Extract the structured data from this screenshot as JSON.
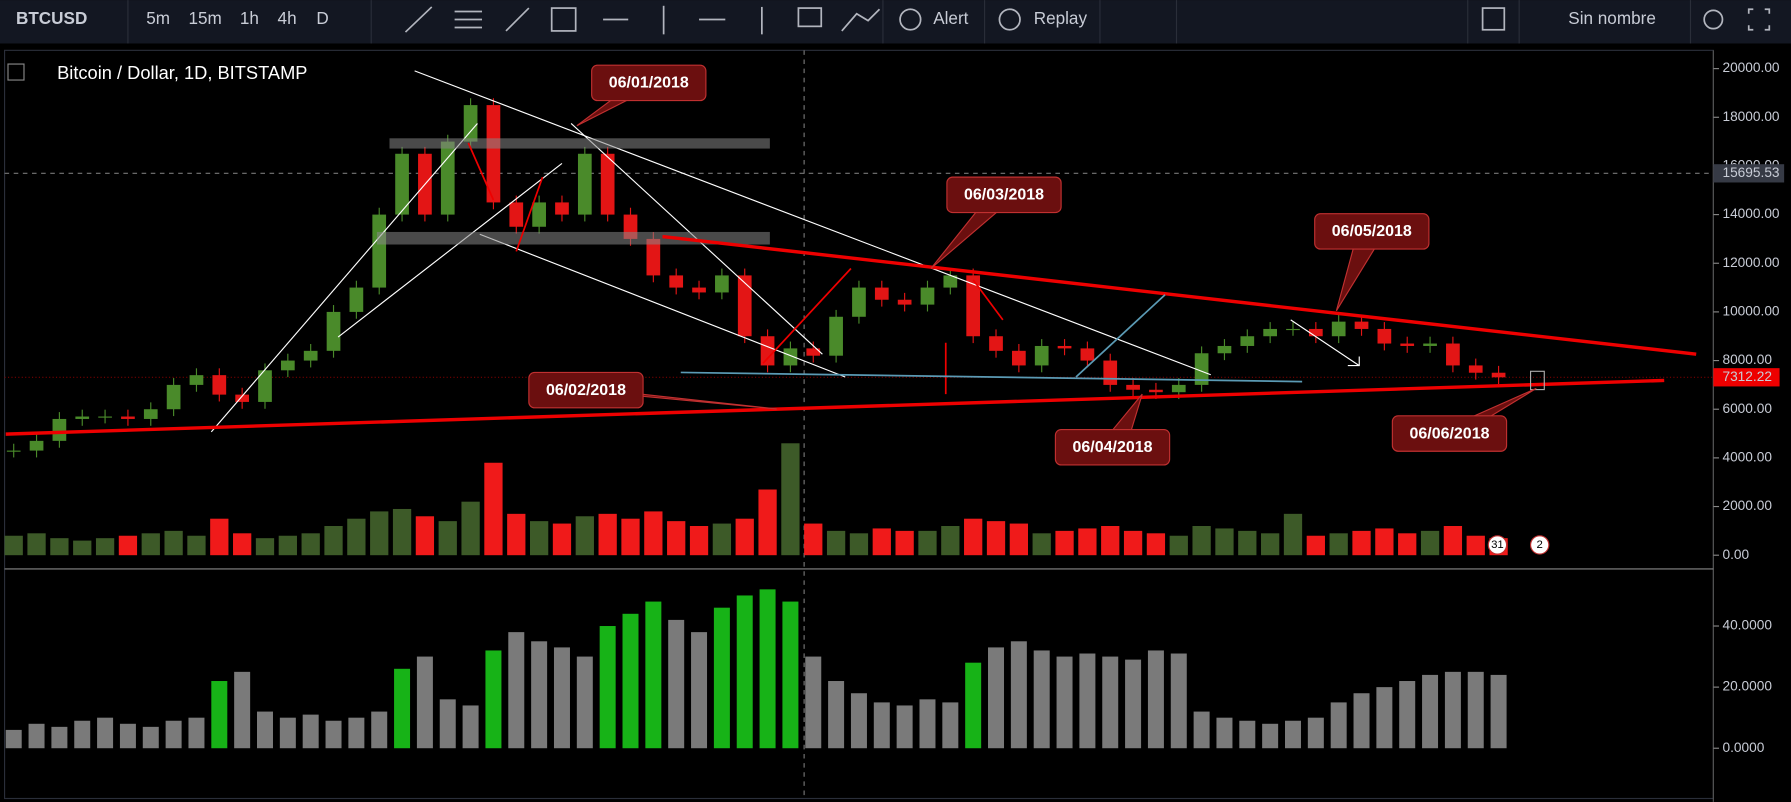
{
  "toolbar": {
    "symbol": "BTCUSD",
    "intervals": [
      "5m",
      "15m",
      "1h",
      "4h",
      "D"
    ],
    "alert": "Alert",
    "replay": "Replay",
    "layout": "Sin nombre"
  },
  "legend": "Bitcoin / Dollar, 1D, BITSTAMP",
  "price_axis": {
    "ticks": [
      {
        "value": 20000,
        "label": "20000.00"
      },
      {
        "value": 18000,
        "label": "18000.00"
      },
      {
        "value": 16000,
        "label": "16000.00"
      },
      {
        "value": 14000,
        "label": "14000.00"
      },
      {
        "value": 12000,
        "label": "12000.00"
      },
      {
        "value": 10000,
        "label": "10000.00"
      },
      {
        "value": 8000,
        "label": "8000.00"
      },
      {
        "value": 6000,
        "label": "6000.00"
      },
      {
        "value": 4000,
        "label": "4000.00"
      },
      {
        "value": 2000,
        "label": "2000.00"
      },
      {
        "value": 0,
        "label": "0.00"
      }
    ],
    "crosshair": {
      "value": 15695.53,
      "label": "15695.53"
    },
    "last": {
      "value": 7312.22,
      "label": "7312.22"
    }
  },
  "osc_axis": {
    "ticks": [
      {
        "value": 40,
        "label": "40.0000"
      },
      {
        "value": 20,
        "label": "20.0000"
      },
      {
        "value": 0,
        "label": "0.0000"
      }
    ]
  },
  "price": [
    4300,
    4700,
    5600,
    5700,
    5700,
    5600,
    6000,
    7000,
    7400,
    6600,
    6300,
    7600,
    8000,
    8400,
    10000,
    11000,
    14000,
    16500,
    14000,
    17000,
    18500,
    14500,
    13500,
    14500,
    14000,
    16500,
    14000,
    13000,
    11500,
    11000,
    10800,
    11500,
    9000,
    7800,
    8500,
    8200,
    9800,
    11000,
    10500,
    10300,
    11000,
    11500,
    9000,
    8400,
    7800,
    8600,
    8500,
    8000,
    7000,
    6800,
    6700,
    7000,
    8300,
    8600,
    9000,
    9300,
    9300,
    9000,
    9600,
    9300,
    8700,
    8600,
    8700,
    7800,
    7500,
    7312
  ],
  "volume": [
    800,
    900,
    700,
    600,
    700,
    800,
    900,
    1000,
    800,
    1500,
    900,
    700,
    800,
    900,
    1200,
    1500,
    1800,
    1900,
    1600,
    1400,
    2200,
    3800,
    1700,
    1400,
    1300,
    1600,
    1700,
    1500,
    1800,
    1400,
    1200,
    1300,
    1500,
    2700,
    4600,
    1300,
    1000,
    900,
    1100,
    1000,
    1000,
    1200,
    1500,
    1400,
    1300,
    900,
    1000,
    1100,
    1200,
    1000,
    900,
    800,
    1200,
    1100,
    1000,
    900,
    1700,
    800,
    900,
    1000,
    1100,
    900,
    1000,
    1200,
    800,
    700
  ],
  "oscillator": [
    6,
    8,
    7,
    9,
    10,
    8,
    7,
    9,
    10,
    22,
    25,
    12,
    10,
    11,
    9,
    10,
    12,
    26,
    30,
    16,
    14,
    32,
    38,
    35,
    33,
    30,
    40,
    44,
    48,
    42,
    38,
    46,
    50,
    52,
    48,
    30,
    22,
    18,
    15,
    14,
    16,
    15,
    28,
    33,
    35,
    32,
    30,
    31,
    30,
    29,
    32,
    31,
    12,
    10,
    9,
    8,
    9,
    10,
    15,
    18,
    20,
    22,
    24,
    25,
    25,
    24
  ],
  "annotations": [
    "06/01/2018",
    "06/02/2018",
    "06/03/2018",
    "06/04/2018",
    "06/05/2018",
    "06/06/2018"
  ],
  "badges": [
    "31",
    "2"
  ]
}
